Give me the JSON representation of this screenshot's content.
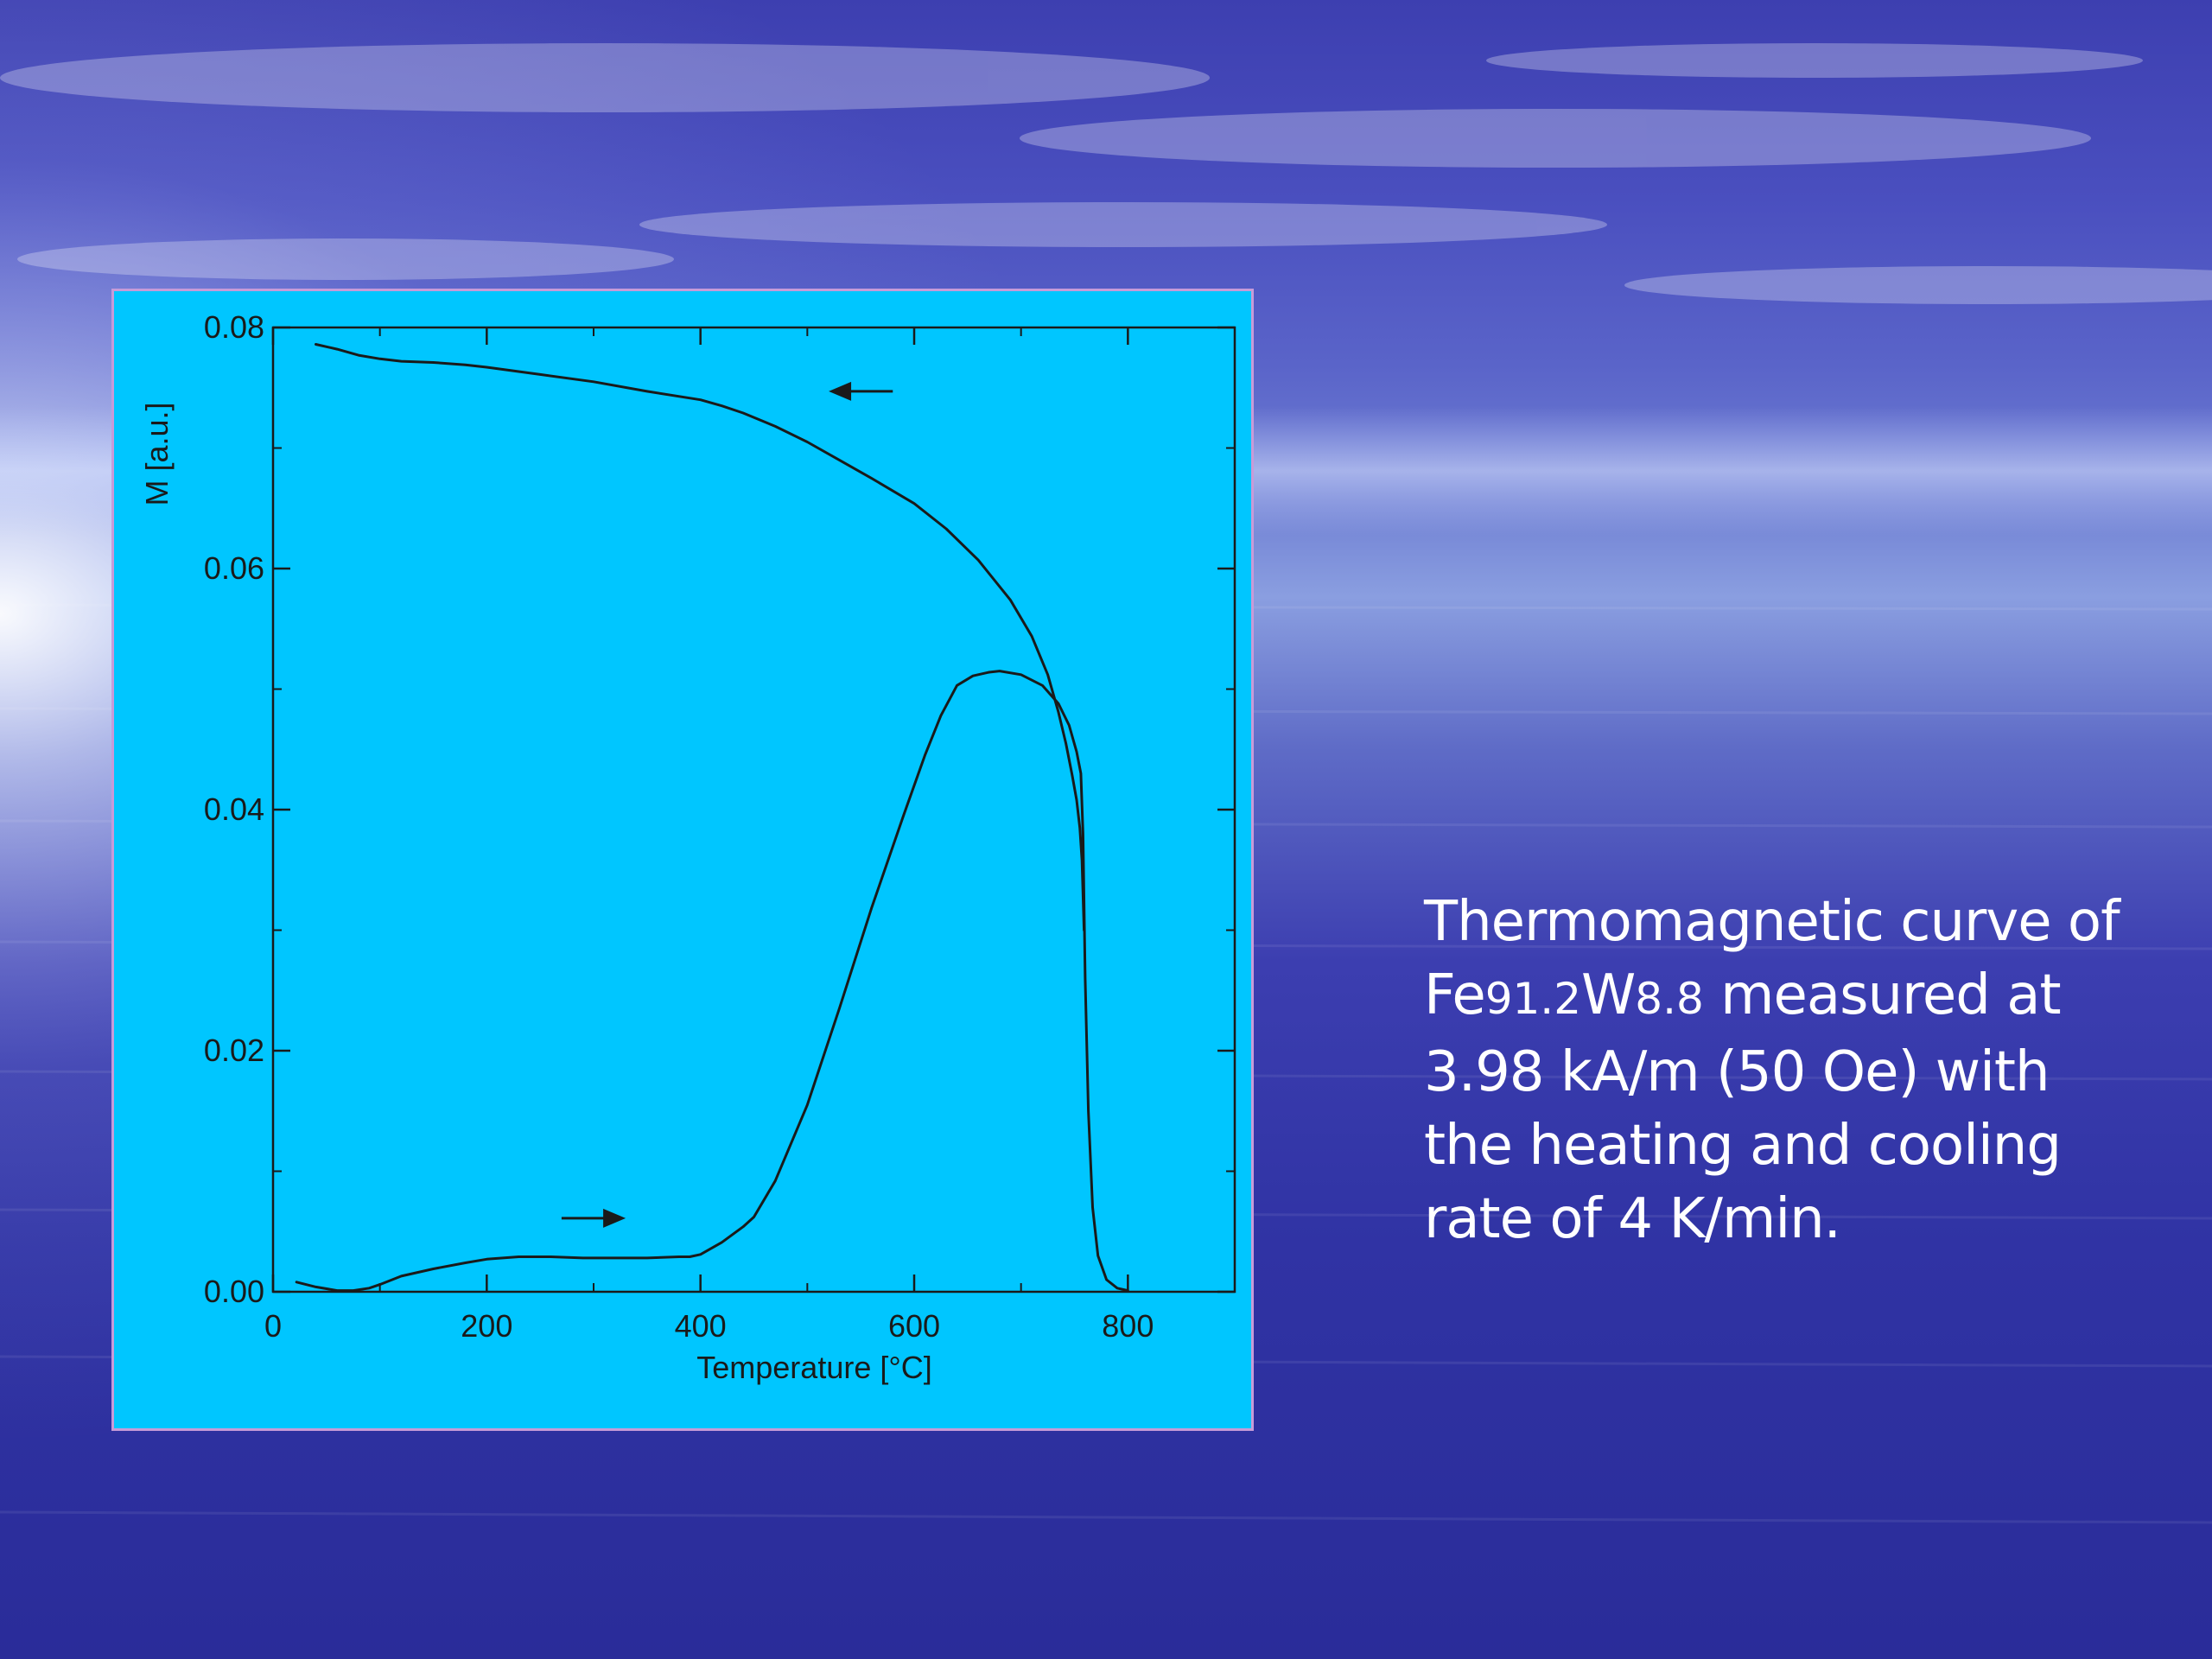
{
  "slide": {
    "caption": {
      "line1": "Thermomagnetic curve of",
      "line2_prefix": "Fe",
      "line2_fe_sub": "91.2",
      "line2_w": "W",
      "line2_w_sub": "8.8",
      "line2_suffix": " measured at",
      "line3": "3.98 kA/m (50 Oe) with",
      "line4": "the heating and cooling",
      "line5": "rate of 4 K/min."
    },
    "colors": {
      "panel_background": "#00c6ff",
      "panel_border": "#c79bd8",
      "curve": "#1a1a1a",
      "caption_text": "#ffffff"
    }
  },
  "chart_data": {
    "type": "line",
    "title": "",
    "xlabel": "Temperature [°C]",
    "ylabel": "M [a.u.]",
    "xlim": [
      0,
      900
    ],
    "ylim": [
      0,
      0.08
    ],
    "x_ticks": [
      0,
      200,
      400,
      600,
      800
    ],
    "x_tick_labels": [
      "0",
      "200",
      "400",
      "600",
      "800"
    ],
    "y_ticks": [
      0,
      0.02,
      0.04,
      0.06,
      0.08
    ],
    "y_tick_labels": [
      "0.00",
      "0.02",
      "0.04",
      "0.06",
      "0.08"
    ],
    "grid": false,
    "legend": "none",
    "arrows": [
      {
        "direction": "left",
        "x_from": 580,
        "x_to": 520,
        "y": 0.0747
      },
      {
        "direction": "right",
        "x_from": 270,
        "x_to": 330,
        "y": 0.0061
      }
    ],
    "series": [
      {
        "x": [
          22,
          40,
          60,
          75,
          90,
          100,
          120,
          150,
          180,
          200,
          230,
          260,
          290,
          320,
          350,
          380,
          390,
          400,
          420,
          440,
          450,
          470,
          500,
          530,
          560,
          590,
          610,
          625,
          640,
          655,
          670,
          680,
          700,
          720,
          735,
          745,
          752,
          756,
          758,
          760,
          763,
          767,
          772,
          780,
          790,
          800
        ],
        "y": [
          0.0008,
          0.0004,
          0.0001,
          0.0001,
          0.0003,
          0.0006,
          0.0013,
          0.0019,
          0.0024,
          0.0027,
          0.0029,
          0.0029,
          0.0028,
          0.0028,
          0.0028,
          0.0029,
          0.0029,
          0.0031,
          0.0041,
          0.0054,
          0.0062,
          0.0092,
          0.0155,
          0.0235,
          0.0318,
          0.0395,
          0.0445,
          0.0478,
          0.0503,
          0.0511,
          0.0514,
          0.0515,
          0.0512,
          0.0503,
          0.0488,
          0.047,
          0.0448,
          0.043,
          0.038,
          0.026,
          0.015,
          0.007,
          0.003,
          0.001,
          0.0003,
          0.0001
        ]
      },
      {
        "x": [
          40,
          60,
          80,
          100,
          120,
          150,
          180,
          200,
          250,
          300,
          350,
          400,
          420,
          440,
          470,
          500,
          530,
          560,
          600,
          630,
          660,
          690,
          710,
          725,
          735,
          742,
          748,
          752,
          755,
          757,
          759
        ],
        "y": [
          0.0786,
          0.0782,
          0.0777,
          0.0774,
          0.0772,
          0.0771,
          0.0769,
          0.0767,
          0.0761,
          0.0755,
          0.0747,
          0.074,
          0.0735,
          0.0729,
          0.0718,
          0.0705,
          0.069,
          0.0675,
          0.0654,
          0.0633,
          0.0607,
          0.0574,
          0.0544,
          0.0512,
          0.0481,
          0.0455,
          0.0428,
          0.0408,
          0.0385,
          0.0358,
          0.03
        ]
      }
    ]
  }
}
